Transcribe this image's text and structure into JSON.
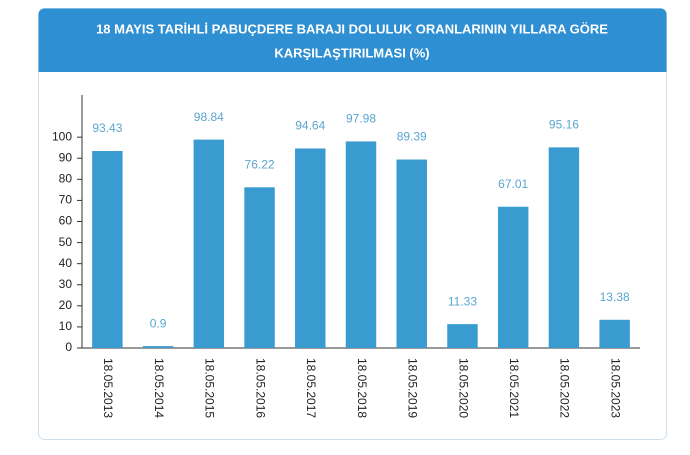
{
  "chart_data": {
    "type": "bar",
    "title": [
      "18 MAYIS TARİHLİ PABUÇDERE BARAJI DOLULUK ORANLARININ YILLARA GÖRE",
      "KARŞILAŞTIRILMASI (%)"
    ],
    "categories": [
      "18.05.2013",
      "18.05.2014",
      "18.05.2015",
      "18.05.2016",
      "18.05.2017",
      "18.05.2018",
      "18.05.2019",
      "18.05.2020",
      "18.05.2021",
      "18.05.2022",
      "18.05.2023"
    ],
    "values": [
      93.43,
      0.9,
      98.84,
      76.22,
      94.64,
      97.98,
      89.39,
      11.33,
      67.01,
      95.16,
      13.38
    ],
    "color": "#3a9bd0",
    "ylim": [
      0,
      120
    ],
    "yticks": [
      0,
      10,
      20,
      30,
      40,
      50,
      60,
      70,
      80,
      90,
      100
    ]
  }
}
